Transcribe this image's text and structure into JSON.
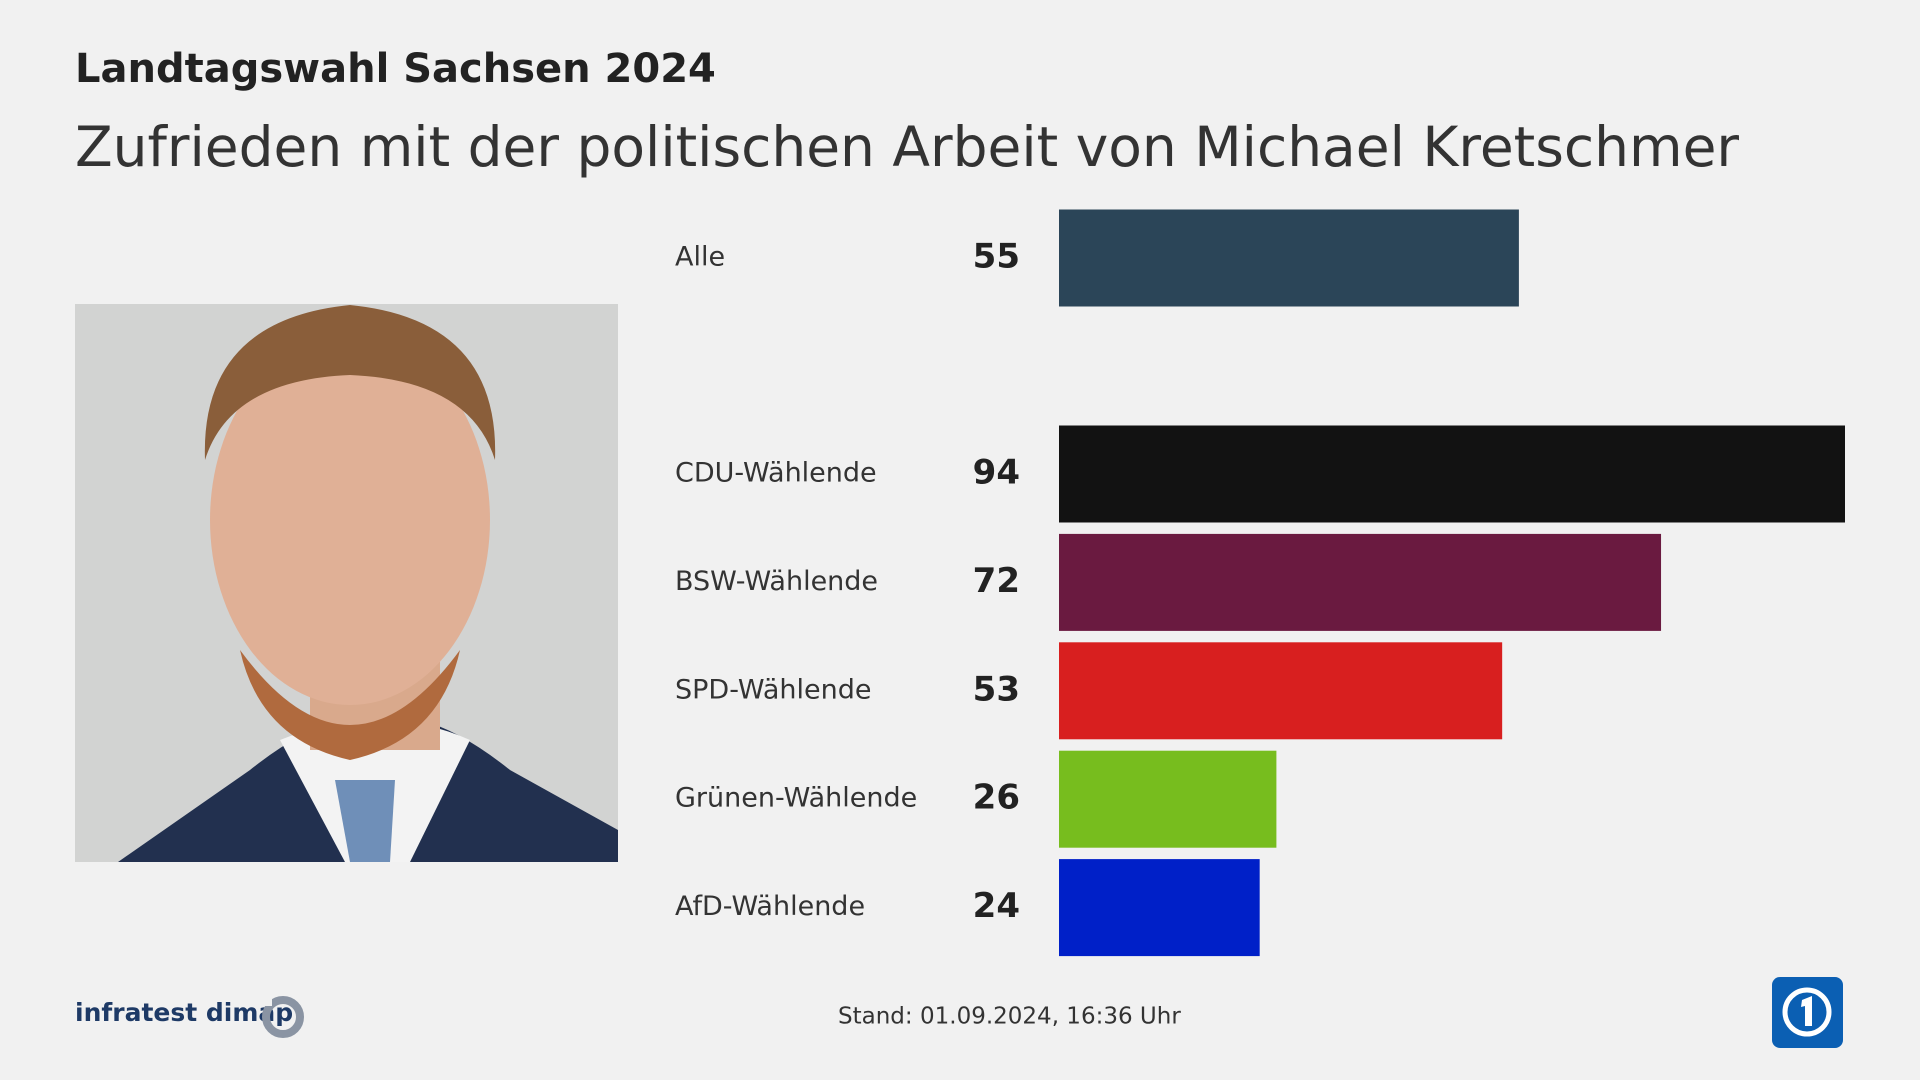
{
  "chart_data": {
    "type": "bar",
    "orientation": "horizontal",
    "title": "Landtagswahl Sachsen 2024",
    "subtitle": "Zufrieden mit der politischen Arbeit von Michael Kretschmer",
    "categories": [
      "Alle",
      "CDU-Wählende",
      "BSW-Wählende",
      "SPD-Wählende",
      "Grünen-Wählende",
      "AfD-Wählende"
    ],
    "values": [
      55,
      94,
      72,
      53,
      26,
      24
    ],
    "colors": [
      "#2b4558",
      "#121212",
      "#6a1a40",
      "#d81f1f",
      "#77bd1e",
      "#0020c8"
    ],
    "source": "infratest dimap",
    "stand_label": "Stand:",
    "stand_date": "01.09.2024, 16:36 Uhr"
  }
}
